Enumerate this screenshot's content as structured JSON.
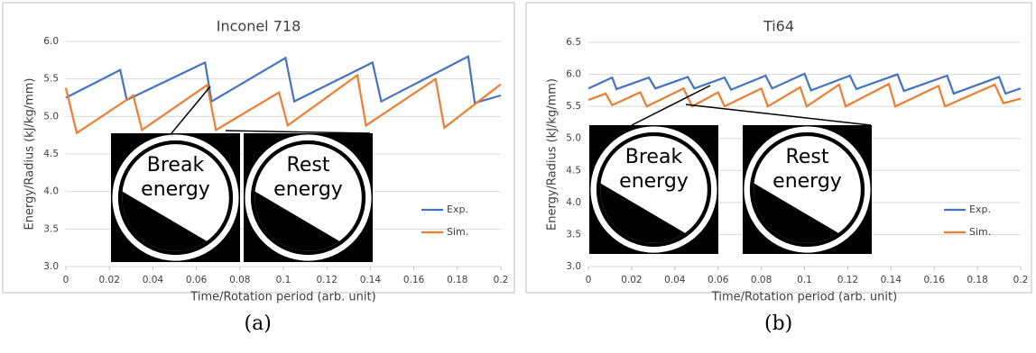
{
  "chart_data": [
    {
      "type": "line",
      "title": "Inconel 718",
      "xlabel": "Time/Rotation period (arb. unit)",
      "ylabel": "Energy/Radius (kJ/kg/mm)",
      "xlim": [
        0,
        0.2
      ],
      "xticks": [
        0,
        0.02,
        0.04,
        0.06,
        0.08,
        0.1,
        0.12,
        0.14,
        0.16,
        0.18,
        0.2
      ],
      "ylim": [
        3.0,
        6.0
      ],
      "yticks": [
        {
          "value": 3.0,
          "label": "3.0"
        },
        3.5,
        {
          "value": 4.0,
          "label": "4.0"
        },
        4.5,
        {
          "value": 5.0,
          "label": "5.0"
        },
        5.5,
        {
          "value": 6.0,
          "label": "6.0"
        }
      ],
      "grid": true,
      "legend": "right",
      "series": [
        {
          "name": "Exp.",
          "color": "#4472c4",
          "x": [
            0,
            0.025,
            0.028,
            0.064,
            0.067,
            0.101,
            0.105,
            0.141,
            0.145,
            0.185,
            0.188,
            0.2
          ],
          "values": [
            5.25,
            5.62,
            5.22,
            5.72,
            5.2,
            5.78,
            5.2,
            5.72,
            5.2,
            5.8,
            5.18,
            5.28
          ]
        },
        {
          "name": "Sim.",
          "color": "#ed7d31",
          "x": [
            0,
            0.005,
            0.031,
            0.035,
            0.065,
            0.069,
            0.098,
            0.102,
            0.134,
            0.138,
            0.17,
            0.174,
            0.2
          ],
          "values": [
            5.38,
            4.78,
            5.28,
            4.82,
            5.42,
            4.82,
            5.32,
            4.88,
            5.55,
            4.88,
            5.5,
            4.85,
            5.43
          ]
        }
      ],
      "insets": [
        "Break energy",
        "Rest energy"
      ],
      "caption": "(a)"
    },
    {
      "type": "line",
      "title": "Ti64",
      "xlabel": "Time/Rotation period (arb. unit)",
      "ylabel": "Energy/Radius (kJ/kg/mm)",
      "xlim": [
        0,
        0.2
      ],
      "xticks": [
        0,
        0.02,
        0.04,
        0.06,
        0.08,
        0.1,
        0.12,
        0.14,
        0.16,
        0.18,
        0.2
      ],
      "ylim": [
        3.0,
        6.5
      ],
      "yticks": [
        {
          "value": 3.0,
          "label": "3.0"
        },
        3.5,
        {
          "value": 4.0,
          "label": "4.0"
        },
        4.5,
        {
          "value": 5.0,
          "label": "5.0"
        },
        5.5,
        {
          "value": 6.0,
          "label": "6.0"
        },
        6.5
      ],
      "grid": true,
      "legend": "right",
      "series": [
        {
          "name": "Exp.",
          "color": "#4472c4",
          "x": [
            0,
            0.011,
            0.013,
            0.028,
            0.031,
            0.046,
            0.049,
            0.063,
            0.066,
            0.082,
            0.085,
            0.1,
            0.103,
            0.121,
            0.124,
            0.143,
            0.146,
            0.166,
            0.169,
            0.19,
            0.193,
            0.2
          ],
          "values": [
            5.78,
            5.95,
            5.77,
            5.95,
            5.78,
            5.96,
            5.78,
            5.95,
            5.76,
            5.98,
            5.78,
            6.01,
            5.75,
            5.98,
            5.77,
            6.0,
            5.74,
            5.98,
            5.7,
            5.96,
            5.7,
            5.78
          ]
        },
        {
          "name": "Sim.",
          "color": "#ed7d31",
          "x": [
            0,
            0.008,
            0.011,
            0.024,
            0.027,
            0.044,
            0.048,
            0.06,
            0.063,
            0.08,
            0.083,
            0.098,
            0.101,
            0.116,
            0.119,
            0.139,
            0.142,
            0.162,
            0.165,
            0.188,
            0.192,
            0.2
          ],
          "values": [
            5.6,
            5.7,
            5.52,
            5.72,
            5.5,
            5.78,
            5.5,
            5.72,
            5.5,
            5.78,
            5.5,
            5.8,
            5.5,
            5.84,
            5.5,
            5.85,
            5.5,
            5.82,
            5.5,
            5.84,
            5.55,
            5.62
          ]
        }
      ],
      "insets": [
        "Break energy",
        "Rest energy"
      ],
      "caption": "(b)"
    }
  ]
}
